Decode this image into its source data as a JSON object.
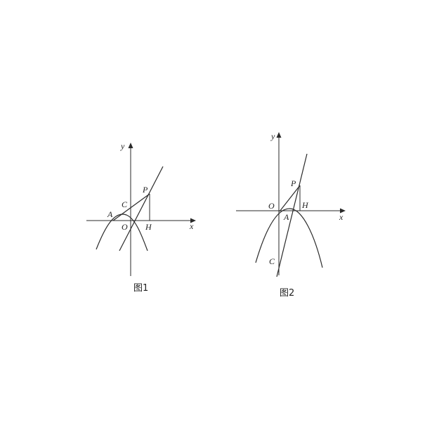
{
  "figures": [
    {
      "caption": "图1",
      "labels": {
        "y": "y",
        "x": "x",
        "P": "P",
        "C": "C",
        "A": "A",
        "O": "O",
        "H": "H"
      }
    },
    {
      "caption": "图2",
      "labels": {
        "y": "y",
        "x": "x",
        "P": "P",
        "O": "O",
        "H": "H",
        "A": "A",
        "C": "C"
      }
    }
  ]
}
